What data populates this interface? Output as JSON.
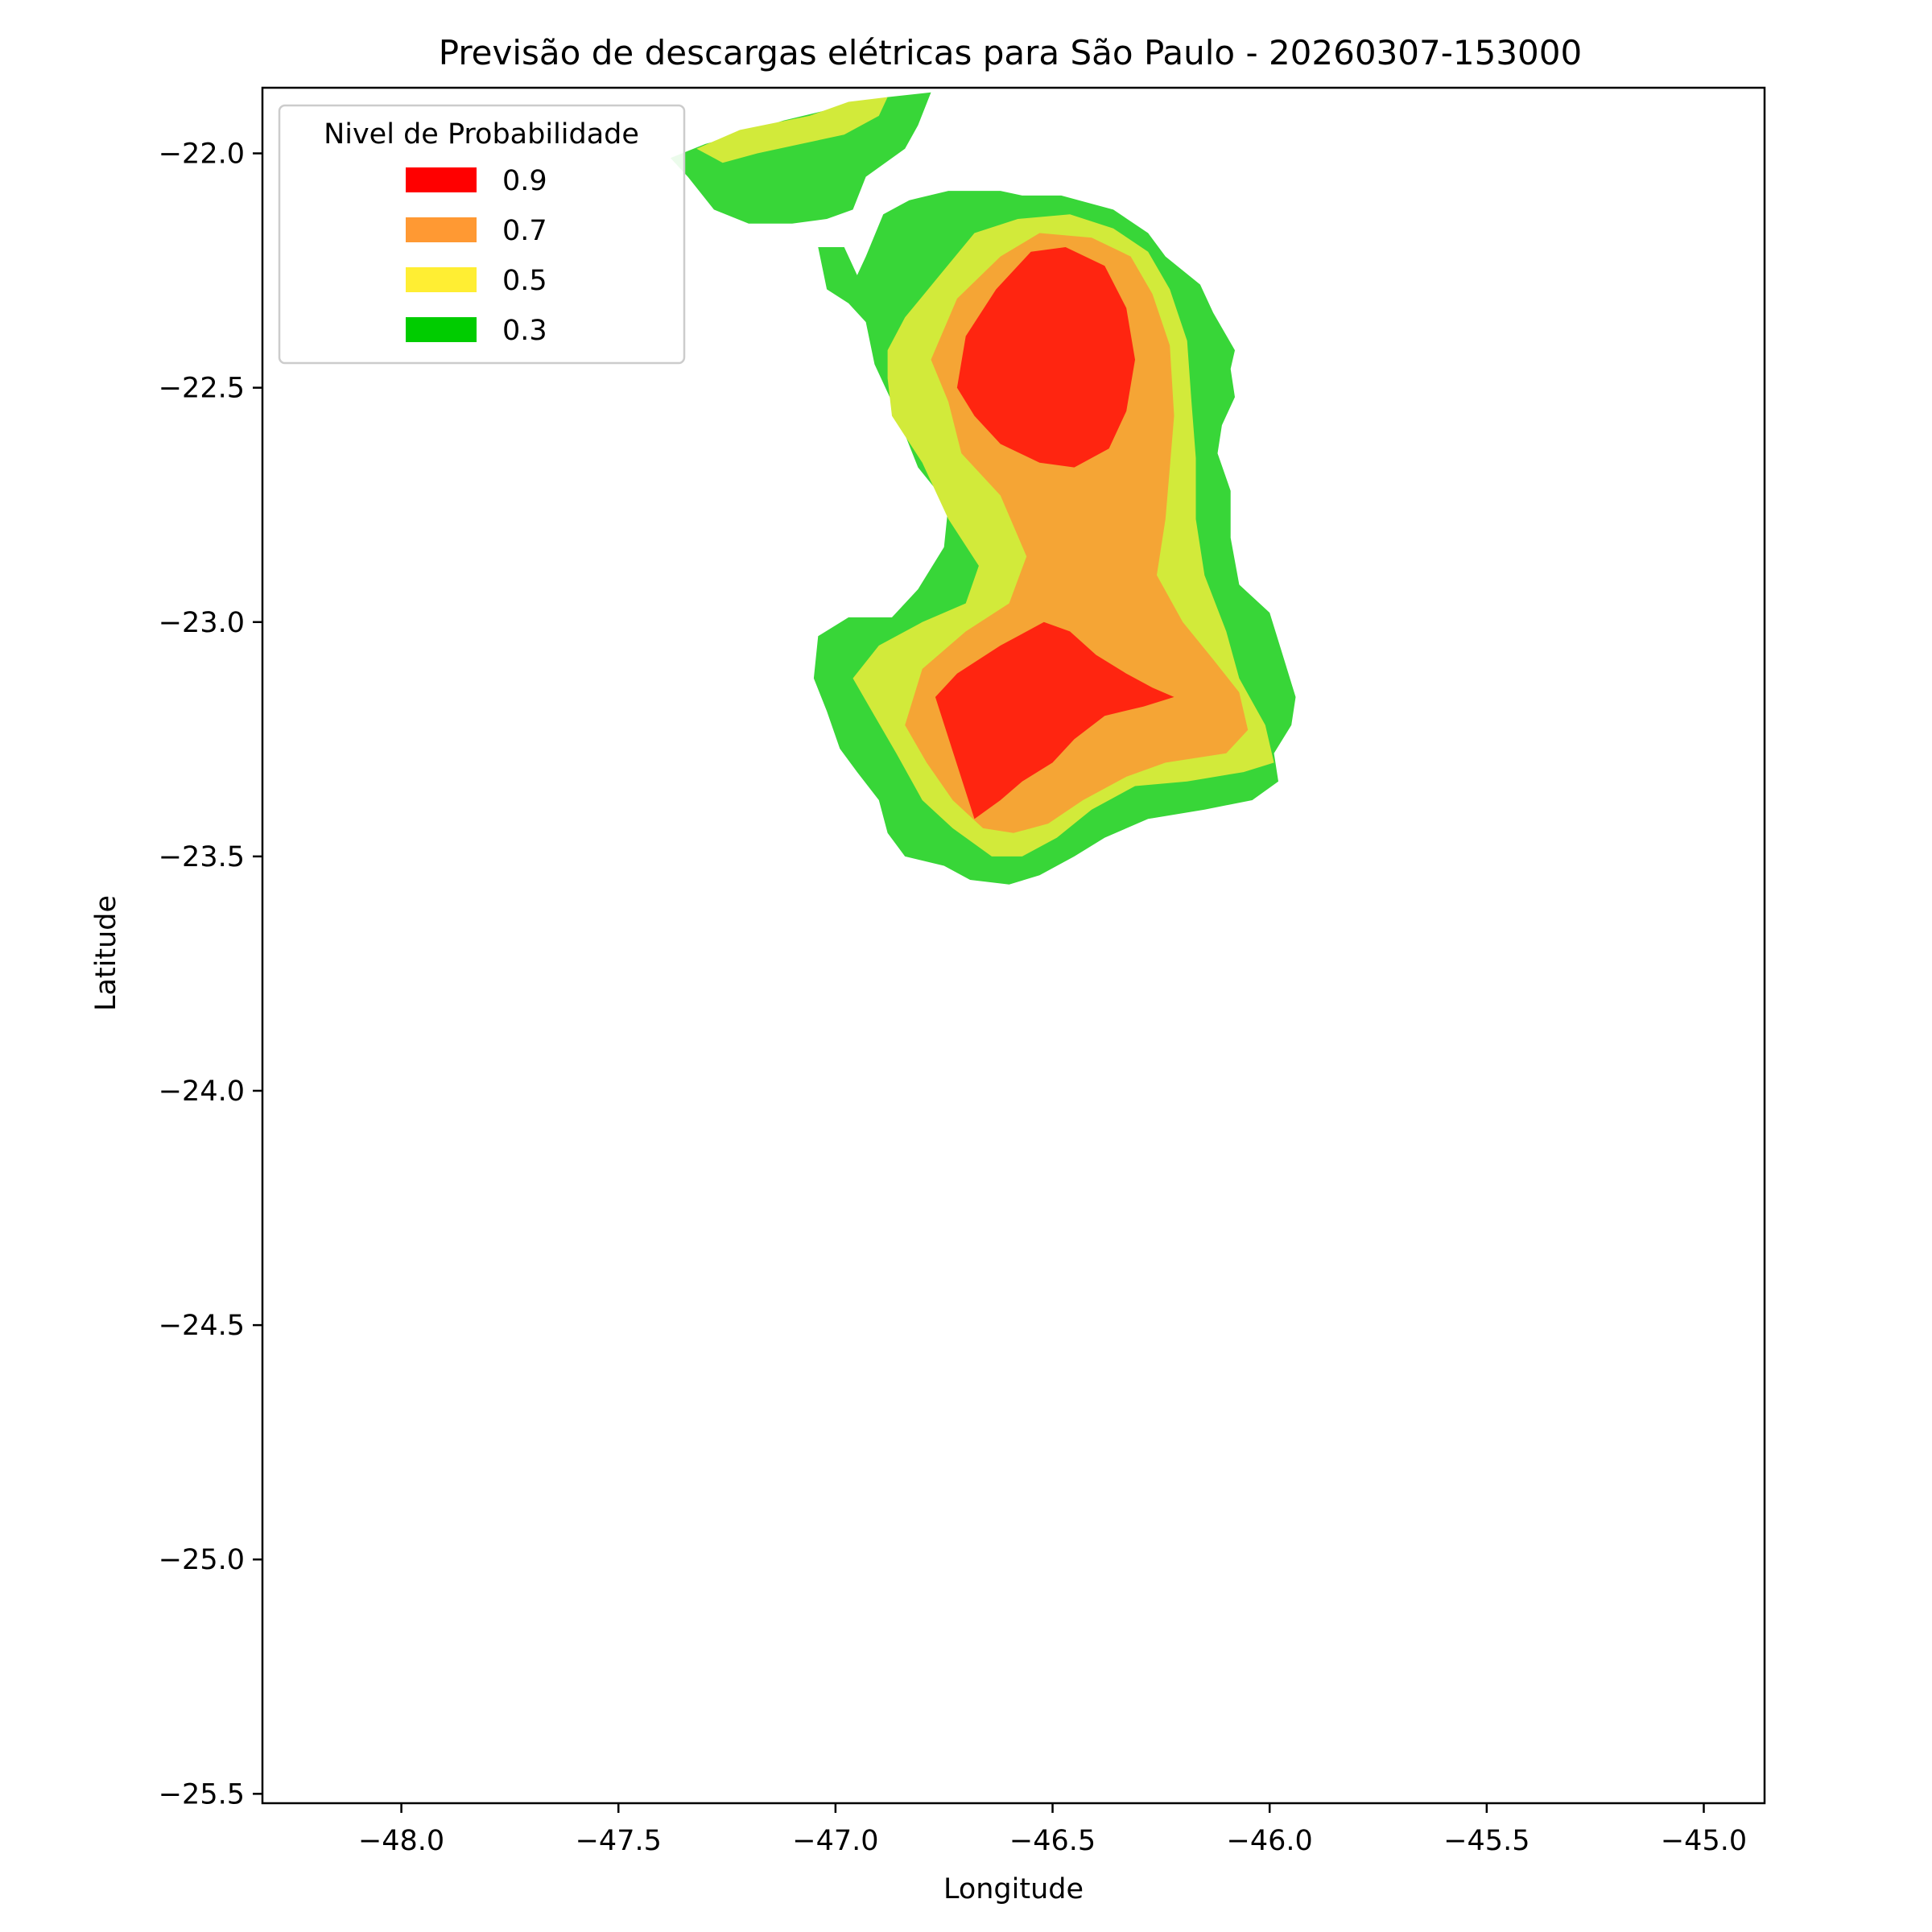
{
  "chart_data": {
    "type": "contour",
    "title": "Previsão de descargas elétricas para São Paulo - 20260307-153000",
    "xlabel": "Longitude",
    "ylabel": "Latitude",
    "xlim": [
      -48.32,
      -44.86
    ],
    "ylim": [
      -25.52,
      -21.86
    ],
    "xticks": [
      -48.0,
      -47.5,
      -47.0,
      -46.5,
      -46.0,
      -45.5,
      -45.0
    ],
    "xtick_labels": [
      "−48.0",
      "−47.5",
      "−47.0",
      "−46.5",
      "−46.0",
      "−45.5",
      "−45.0"
    ],
    "yticks": [
      -22.0,
      -22.5,
      -23.0,
      -23.5,
      -24.0,
      -24.5,
      -25.0,
      -25.5
    ],
    "ytick_labels": [
      "−22.0",
      "−22.5",
      "−23.0",
      "−23.5",
      "−24.0",
      "−24.5",
      "−25.0",
      "−25.5"
    ],
    "grid": false,
    "legend": {
      "title": "Nivel de Probabilidade",
      "position": "top-left",
      "entries": [
        {
          "label": "0.9",
          "color": "#ff0000"
        },
        {
          "label": "0.7",
          "color": "#ff9933"
        },
        {
          "label": "0.5",
          "color": "#ffee33"
        },
        {
          "label": "0.3",
          "color": "#00cc00"
        }
      ]
    },
    "fill_colors": {
      "0.3": "#38d638",
      "0.5": "#d2ea3a",
      "0.7": "#f5a535",
      "0.9": "#ff2510"
    },
    "regions": [
      {
        "level": "0.3",
        "points": [
          [
            -47.04,
            -22.2
          ],
          [
            -46.98,
            -22.2
          ],
          [
            -46.95,
            -22.26
          ],
          [
            -46.93,
            -22.22
          ],
          [
            -46.89,
            -22.13
          ],
          [
            -46.83,
            -22.1
          ],
          [
            -46.74,
            -22.08
          ],
          [
            -46.62,
            -22.08
          ],
          [
            -46.57,
            -22.09
          ],
          [
            -46.48,
            -22.09
          ],
          [
            -46.36,
            -22.12
          ],
          [
            -46.28,
            -22.17
          ],
          [
            -46.24,
            -22.22
          ],
          [
            -46.16,
            -22.28
          ],
          [
            -46.13,
            -22.34
          ],
          [
            -46.08,
            -22.42
          ],
          [
            -46.09,
            -22.46
          ],
          [
            -46.08,
            -22.52
          ],
          [
            -46.11,
            -22.58
          ],
          [
            -46.12,
            -22.64
          ],
          [
            -46.09,
            -22.72
          ],
          [
            -46.09,
            -22.82
          ],
          [
            -46.07,
            -22.92
          ],
          [
            -46.0,
            -22.98
          ],
          [
            -45.97,
            -23.07
          ],
          [
            -45.94,
            -23.16
          ],
          [
            -45.95,
            -23.22
          ],
          [
            -45.99,
            -23.28
          ],
          [
            -45.98,
            -23.34
          ],
          [
            -46.04,
            -23.38
          ],
          [
            -46.15,
            -23.4
          ],
          [
            -46.28,
            -23.42
          ],
          [
            -46.38,
            -23.46
          ],
          [
            -46.45,
            -23.5
          ],
          [
            -46.53,
            -23.54
          ],
          [
            -46.6,
            -23.56
          ],
          [
            -46.69,
            -23.55
          ],
          [
            -46.75,
            -23.52
          ],
          [
            -46.84,
            -23.5
          ],
          [
            -46.88,
            -23.45
          ],
          [
            -46.9,
            -23.38
          ],
          [
            -46.95,
            -23.32
          ],
          [
            -46.99,
            -23.27
          ],
          [
            -47.02,
            -23.19
          ],
          [
            -47.05,
            -23.12
          ],
          [
            -47.04,
            -23.03
          ],
          [
            -46.97,
            -22.99
          ],
          [
            -46.87,
            -22.99
          ],
          [
            -46.81,
            -22.93
          ],
          [
            -46.75,
            -22.84
          ],
          [
            -46.74,
            -22.75
          ],
          [
            -46.81,
            -22.67
          ],
          [
            -46.84,
            -22.6
          ],
          [
            -46.87,
            -22.53
          ],
          [
            -46.91,
            -22.45
          ],
          [
            -46.93,
            -22.36
          ],
          [
            -46.97,
            -22.32
          ],
          [
            -47.02,
            -22.29
          ]
        ]
      },
      {
        "level": "0.3",
        "points": [
          [
            -47.38,
            -22.01
          ],
          [
            -47.3,
            -21.98
          ],
          [
            -47.22,
            -21.96
          ],
          [
            -47.12,
            -21.93
          ],
          [
            -47.03,
            -21.91
          ],
          [
            -46.88,
            -21.88
          ],
          [
            -46.78,
            -21.87
          ],
          [
            -46.81,
            -21.94
          ],
          [
            -46.84,
            -21.99
          ],
          [
            -46.93,
            -22.05
          ],
          [
            -46.96,
            -22.12
          ],
          [
            -47.02,
            -22.14
          ],
          [
            -47.1,
            -22.15
          ],
          [
            -47.2,
            -22.15
          ],
          [
            -47.28,
            -22.12
          ],
          [
            -47.34,
            -22.05
          ]
        ]
      },
      {
        "level": "0.5",
        "points": [
          [
            -46.84,
            -22.35
          ],
          [
            -46.76,
            -22.26
          ],
          [
            -46.68,
            -22.17
          ],
          [
            -46.58,
            -22.14
          ],
          [
            -46.46,
            -22.13
          ],
          [
            -46.36,
            -22.16
          ],
          [
            -46.28,
            -22.21
          ],
          [
            -46.23,
            -22.29
          ],
          [
            -46.19,
            -22.4
          ],
          [
            -46.18,
            -22.53
          ],
          [
            -46.17,
            -22.65
          ],
          [
            -46.17,
            -22.78
          ],
          [
            -46.15,
            -22.9
          ],
          [
            -46.1,
            -23.02
          ],
          [
            -46.07,
            -23.12
          ],
          [
            -46.01,
            -23.22
          ],
          [
            -45.99,
            -23.3
          ],
          [
            -46.06,
            -23.32
          ],
          [
            -46.19,
            -23.34
          ],
          [
            -46.31,
            -23.35
          ],
          [
            -46.41,
            -23.4
          ],
          [
            -46.49,
            -23.46
          ],
          [
            -46.57,
            -23.5
          ],
          [
            -46.64,
            -23.5
          ],
          [
            -46.73,
            -23.44
          ],
          [
            -46.8,
            -23.38
          ],
          [
            -46.86,
            -23.28
          ],
          [
            -46.91,
            -23.2
          ],
          [
            -46.96,
            -23.12
          ],
          [
            -46.9,
            -23.05
          ],
          [
            -46.8,
            -23.0
          ],
          [
            -46.7,
            -22.96
          ],
          [
            -46.67,
            -22.88
          ],
          [
            -46.74,
            -22.78
          ],
          [
            -46.8,
            -22.66
          ],
          [
            -46.87,
            -22.56
          ],
          [
            -46.88,
            -22.48
          ],
          [
            -46.88,
            -22.42
          ]
        ]
      },
      {
        "level": "0.5",
        "points": [
          [
            -47.32,
            -21.99
          ],
          [
            -47.22,
            -21.95
          ],
          [
            -47.06,
            -21.92
          ],
          [
            -46.97,
            -21.89
          ],
          [
            -46.88,
            -21.88
          ],
          [
            -46.9,
            -21.92
          ],
          [
            -46.98,
            -21.96
          ],
          [
            -47.08,
            -21.98
          ],
          [
            -47.18,
            -22.0
          ],
          [
            -47.26,
            -22.02
          ]
        ]
      },
      {
        "level": "0.7",
        "points": [
          [
            -46.78,
            -22.44
          ],
          [
            -46.72,
            -22.31
          ],
          [
            -46.62,
            -22.22
          ],
          [
            -46.53,
            -22.17
          ],
          [
            -46.41,
            -22.18
          ],
          [
            -46.32,
            -22.22
          ],
          [
            -46.27,
            -22.3
          ],
          [
            -46.23,
            -22.41
          ],
          [
            -46.22,
            -22.56
          ],
          [
            -46.23,
            -22.67
          ],
          [
            -46.24,
            -22.78
          ],
          [
            -46.26,
            -22.9
          ],
          [
            -46.2,
            -23.0
          ],
          [
            -46.13,
            -23.08
          ],
          [
            -46.07,
            -23.15
          ],
          [
            -46.05,
            -23.23
          ],
          [
            -46.1,
            -23.28
          ],
          [
            -46.24,
            -23.3
          ],
          [
            -46.33,
            -23.33
          ],
          [
            -46.43,
            -23.38
          ],
          [
            -46.51,
            -23.43
          ],
          [
            -46.59,
            -23.45
          ],
          [
            -46.66,
            -23.44
          ],
          [
            -46.73,
            -23.38
          ],
          [
            -46.79,
            -23.3
          ],
          [
            -46.84,
            -23.22
          ],
          [
            -46.8,
            -23.1
          ],
          [
            -46.7,
            -23.02
          ],
          [
            -46.6,
            -22.96
          ],
          [
            -46.56,
            -22.86
          ],
          [
            -46.62,
            -22.73
          ],
          [
            -46.71,
            -22.64
          ],
          [
            -46.74,
            -22.53
          ]
        ]
      },
      {
        "level": "0.9",
        "points": [
          [
            -46.72,
            -22.5
          ],
          [
            -46.7,
            -22.39
          ],
          [
            -46.63,
            -22.29
          ],
          [
            -46.55,
            -22.21
          ],
          [
            -46.47,
            -22.2
          ],
          [
            -46.38,
            -22.24
          ],
          [
            -46.33,
            -22.33
          ],
          [
            -46.31,
            -22.44
          ],
          [
            -46.33,
            -22.55
          ],
          [
            -46.37,
            -22.63
          ],
          [
            -46.45,
            -22.67
          ],
          [
            -46.53,
            -22.66
          ],
          [
            -46.62,
            -22.62
          ],
          [
            -46.68,
            -22.56
          ]
        ]
      },
      {
        "level": "0.9",
        "points": [
          [
            -46.77,
            -23.16
          ],
          [
            -46.72,
            -23.11
          ],
          [
            -46.62,
            -23.05
          ],
          [
            -46.52,
            -23.0
          ],
          [
            -46.46,
            -23.02
          ],
          [
            -46.4,
            -23.07
          ],
          [
            -46.33,
            -23.11
          ],
          [
            -46.27,
            -23.14
          ],
          [
            -46.22,
            -23.16
          ],
          [
            -46.29,
            -23.18
          ],
          [
            -46.38,
            -23.2
          ],
          [
            -46.45,
            -23.25
          ],
          [
            -46.5,
            -23.3
          ],
          [
            -46.57,
            -23.34
          ],
          [
            -46.62,
            -23.38
          ],
          [
            -46.68,
            -23.42
          ]
        ]
      }
    ]
  }
}
